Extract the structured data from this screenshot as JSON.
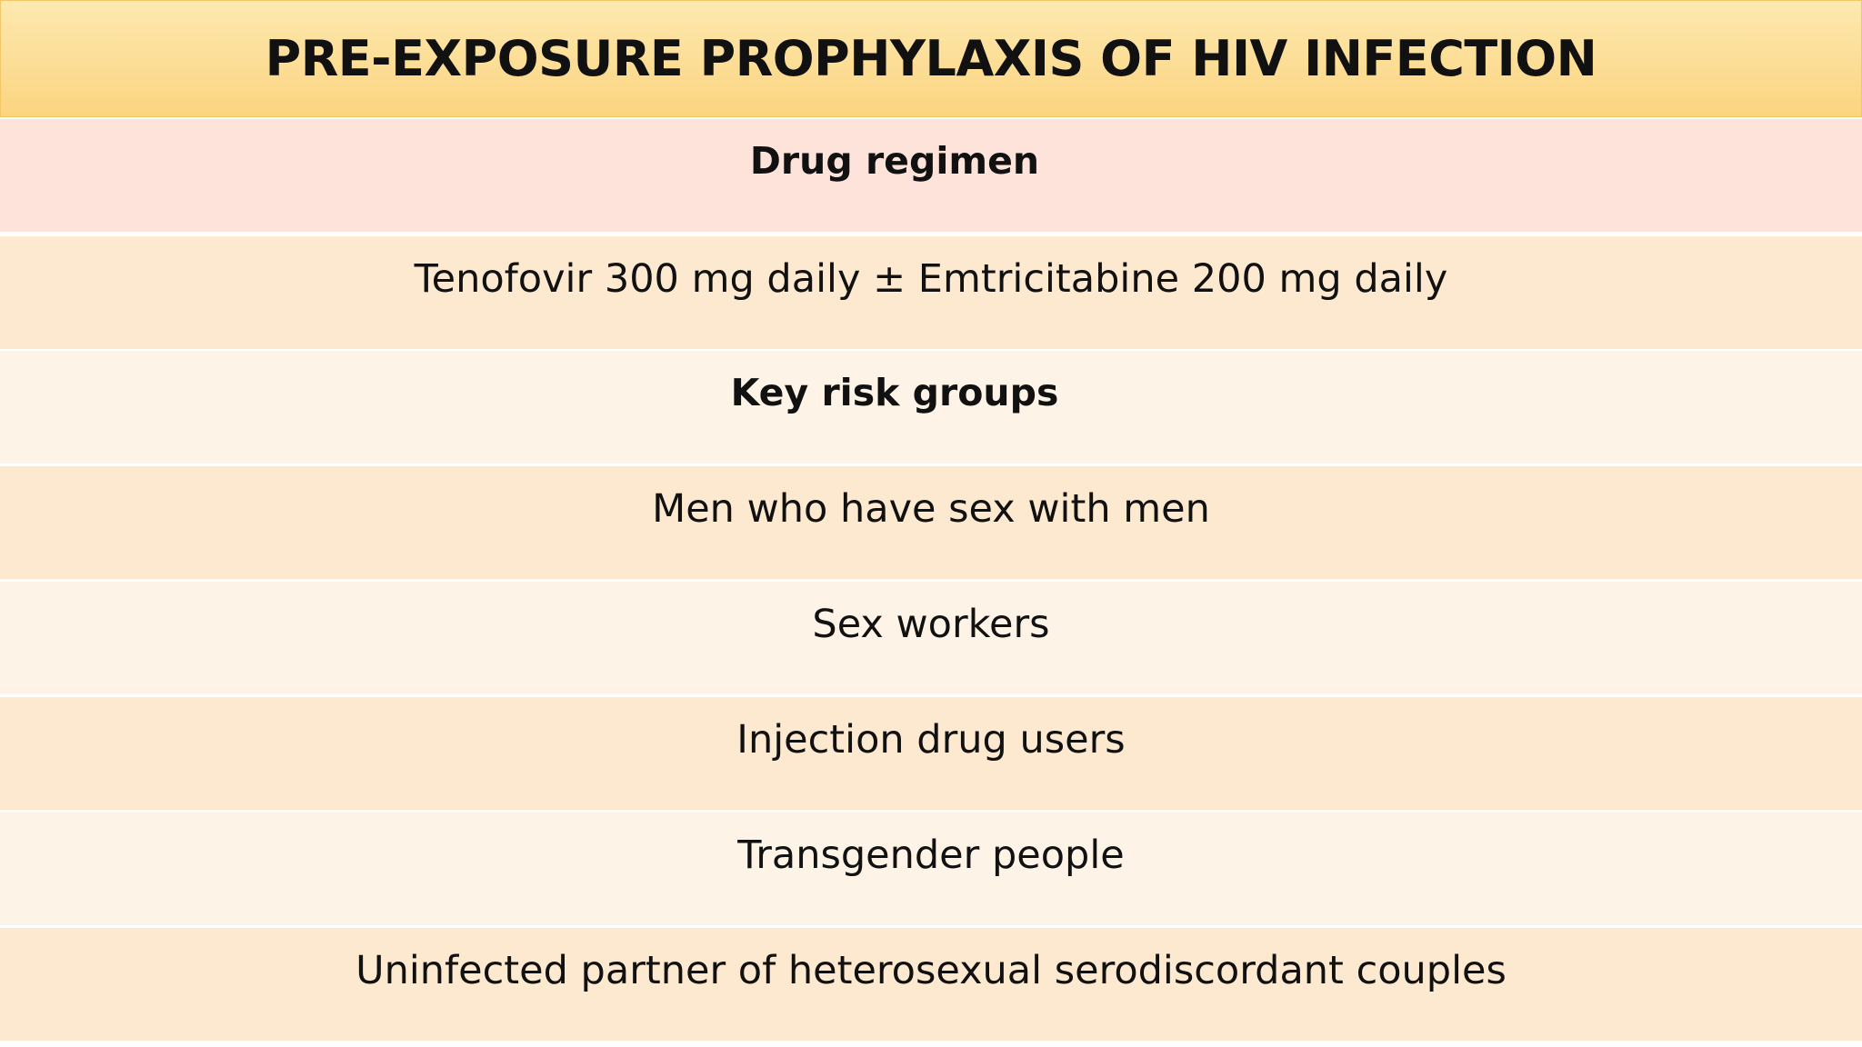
{
  "header": {
    "title": "PRE-EXPOSURE PROPHYLAXIS OF HIV INFECTION"
  },
  "table": {
    "rows": [
      "Drug regimen",
      "Tenofovir 300 mg daily ± Emtricitabine 200 mg daily",
      "Key risk groups",
      "Men who have sex with men",
      "Sex workers",
      "Injection drug users",
      "Transgender people",
      "Uninfected partner of heterosexual serodiscordant couples"
    ]
  }
}
